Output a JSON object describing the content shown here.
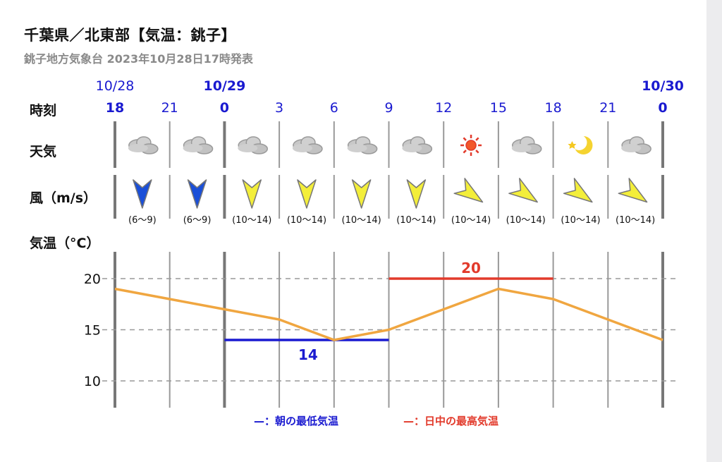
{
  "header": {
    "title": "千葉県／北東部【気温：銚子】",
    "subtitle": "銚子地方気象台 2023年10月28日17時発表"
  },
  "rows": {
    "time_label": "時刻",
    "weather_label": "天気",
    "wind_label": "風（m/s）",
    "temp_label": "気温（°C）"
  },
  "dates": [
    "10/28",
    "10/29",
    "10/30"
  ],
  "hours": [
    "18",
    "21",
    "0",
    "3",
    "6",
    "9",
    "12",
    "15",
    "18",
    "21",
    "0"
  ],
  "weather_icons": [
    "cloud-icon",
    "cloud-icon",
    "cloud-icon",
    "cloud-icon",
    "cloud-icon",
    "cloud-icon",
    "sun-icon",
    "cloud-icon",
    "moon-star-icon",
    "cloud-icon"
  ],
  "wind": [
    {
      "dir": "N",
      "speed": "(6〜9)",
      "color": "#1a4fd8"
    },
    {
      "dir": "N",
      "speed": "(6〜9)",
      "color": "#1a4fd8"
    },
    {
      "dir": "N",
      "speed": "(10〜14)",
      "color": "#f3ee3a"
    },
    {
      "dir": "N",
      "speed": "(10〜14)",
      "color": "#f3ee3a"
    },
    {
      "dir": "N",
      "speed": "(10〜14)",
      "color": "#f3ee3a"
    },
    {
      "dir": "N",
      "speed": "(10〜14)",
      "color": "#f3ee3a"
    },
    {
      "dir": "NE",
      "speed": "(10〜14)",
      "color": "#f3ee3a"
    },
    {
      "dir": "NE",
      "speed": "(10〜14)",
      "color": "#f3ee3a"
    },
    {
      "dir": "NE",
      "speed": "(10〜14)",
      "color": "#f3ee3a"
    },
    {
      "dir": "NE",
      "speed": "(10〜14)",
      "color": "#f3ee3a"
    }
  ],
  "chart_data": {
    "type": "line",
    "x": [
      "10/28 18",
      "10/28 21",
      "10/29 0",
      "10/29 3",
      "10/29 6",
      "10/29 9",
      "10/29 12",
      "10/29 15",
      "10/29 18",
      "10/29 21",
      "10/30 0"
    ],
    "series": [
      {
        "values": [
          19,
          18,
          17,
          16,
          14,
          15,
          17,
          19,
          18,
          16,
          14
        ],
        "color": "#f0a640"
      }
    ],
    "ylim": [
      8,
      22
    ],
    "yticks": [
      10,
      15,
      20
    ],
    "grid": true,
    "min_temp": {
      "value": 14,
      "label": "14",
      "from": "10/29 0",
      "to": "10/29 9",
      "color": "#1a1ad0"
    },
    "max_temp": {
      "value": 20,
      "label": "20",
      "from": "10/29 9",
      "to": "10/29 18",
      "color": "#e23a2b"
    }
  },
  "legend": {
    "min_label": "—：朝の最低気温",
    "max_label": "—：日中の最高気温",
    "min_color": "#1a1ad0",
    "max_color": "#e23a2b"
  }
}
